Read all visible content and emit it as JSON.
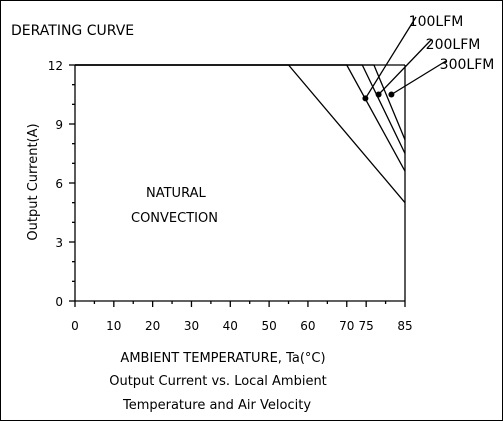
{
  "chart_data": {
    "type": "line",
    "title": "DERATING CURVE",
    "xlabel": "AMBIENT TEMPERATURE, Ta(°C)",
    "ylabel": "Output Current(A)",
    "caption_line1": "Output Current vs. Local Ambient",
    "caption_line2": "Temperature and Air Velocity",
    "region_label_line1": "NATURAL",
    "region_label_line2": "CONVECTION",
    "xlim": [
      0,
      85
    ],
    "ylim": [
      0,
      12
    ],
    "x_ticks": [
      0,
      10,
      20,
      30,
      40,
      50,
      60,
      70,
      75,
      85
    ],
    "x_tick_labels": [
      "0",
      "10",
      "20",
      "30",
      "40",
      "50",
      "60",
      "70",
      "75",
      "85"
    ],
    "y_ticks": [
      0,
      3,
      6,
      9,
      12
    ],
    "y_tick_labels": [
      "0",
      "3",
      "6",
      "9",
      "12"
    ],
    "grid": false,
    "series": [
      {
        "name": "",
        "x": [
          0,
          55,
          85
        ],
        "y": [
          12,
          12,
          5.0
        ]
      },
      {
        "name": "100LFM",
        "x": [
          0,
          70,
          85
        ],
        "y": [
          12,
          12,
          6.6
        ]
      },
      {
        "name": "200LFM",
        "x": [
          0,
          74,
          85
        ],
        "y": [
          12,
          12,
          7.5
        ]
      },
      {
        "name": "300LFM",
        "x": [
          0,
          77,
          85
        ],
        "y": [
          12,
          12,
          8.2
        ]
      }
    ],
    "callouts": [
      {
        "label": "100LFM",
        "x": 74.8,
        "y": 10.3
      },
      {
        "label": "200LFM",
        "x": 78.2,
        "y": 10.5
      },
      {
        "label": "300LFM",
        "x": 81.5,
        "y": 10.5
      }
    ]
  }
}
